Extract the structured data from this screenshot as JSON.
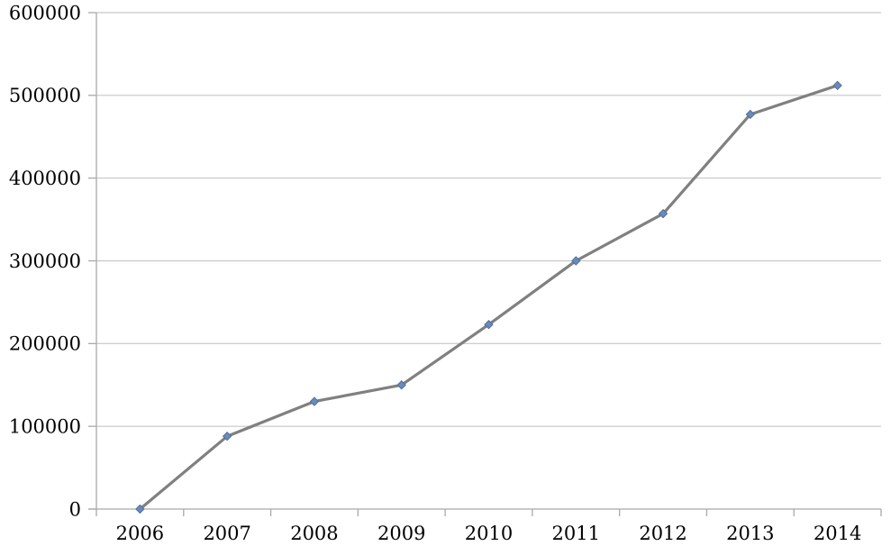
{
  "chart_data": {
    "type": "line",
    "title": "",
    "xlabel": "",
    "ylabel": "",
    "categories": [
      "2006",
      "2007",
      "2008",
      "2009",
      "2010",
      "2011",
      "2012",
      "2013",
      "2014"
    ],
    "values": [
      0,
      88000,
      130000,
      150000,
      223000,
      300000,
      357000,
      477000,
      512000
    ],
    "ylim": [
      0,
      600000
    ],
    "ytick_step": 100000,
    "ytick_labels": [
      "0",
      "100000",
      "200000",
      "300000",
      "400000",
      "500000",
      "600000"
    ],
    "grid": true,
    "legend": "none",
    "marker_shape": "diamond",
    "colors": {
      "line": "#808080",
      "marker_fill": "#6a8bb9",
      "marker_stroke": "#4e6f9f",
      "gridline": "#c6c6c6",
      "axis": "#a9a9a9",
      "text": "#000000",
      "background": "#ffffff"
    }
  }
}
